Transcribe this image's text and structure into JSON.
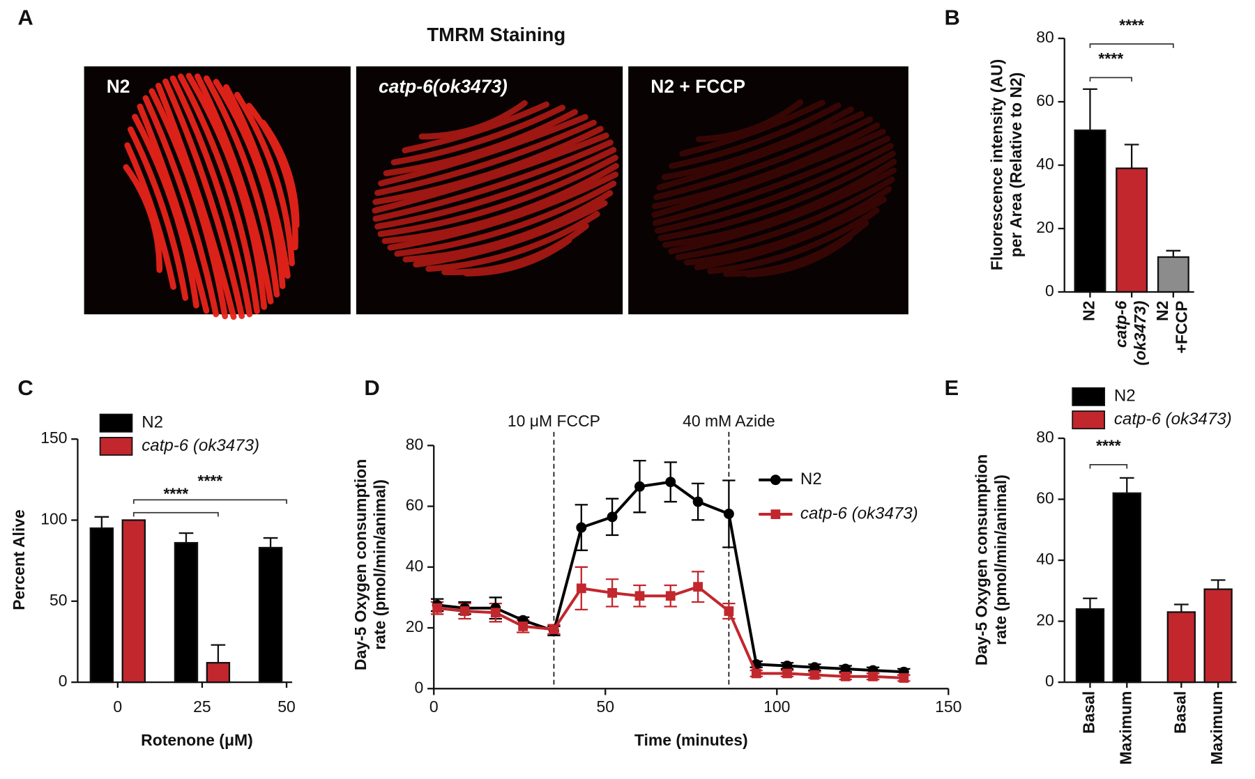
{
  "chart_data": [
    {
      "type": "image",
      "panel": "A",
      "title": "TMRM Staining",
      "images": [
        "N2",
        "catp-6(ok3473)",
        "N2 + FCCP"
      ]
    },
    {
      "type": "bar",
      "panel": "B",
      "ylabel": [
        "Fluorescence intensity (AU)",
        "per Area (Relative to N2)"
      ],
      "categories": [
        [
          "N2"
        ],
        [
          "catp-6",
          "(ok3473)"
        ],
        [
          "N2",
          "+FCCP"
        ]
      ],
      "values": [
        51,
        39,
        11
      ],
      "errors": [
        13,
        7.5,
        2
      ],
      "colors": [
        "#000000",
        "#c1272d",
        "#8c8c8c"
      ],
      "ylim": [
        0,
        80
      ],
      "yticks": [
        0,
        20,
        40,
        60,
        80
      ],
      "annotations": [
        {
          "label": "****",
          "between": [
            0,
            2
          ]
        },
        {
          "label": "****",
          "between": [
            0,
            1
          ]
        }
      ]
    },
    {
      "type": "grouped_bar",
      "panel": "C",
      "xlabel": "Rotenone (μM)",
      "ylabel": "Percent Alive",
      "categories": [
        "0",
        "25",
        "50"
      ],
      "series": [
        {
          "name": "N2",
          "color": "#000000",
          "values": [
            95,
            86,
            83
          ],
          "errors": [
            7,
            6,
            6
          ]
        },
        {
          "name": "catp-6 (ok3473)",
          "color": "#c1272d",
          "values": [
            100,
            12,
            null
          ],
          "errors": [
            null,
            11,
            null
          ]
        }
      ],
      "ylim": [
        0,
        150
      ],
      "yticks": [
        0,
        50,
        100,
        150
      ],
      "legend": "upper left",
      "annotations": [
        {
          "label": "****",
          "between": [
            0,
            1
          ]
        },
        {
          "label": "****",
          "between": [
            0,
            2
          ]
        }
      ]
    },
    {
      "type": "line",
      "panel": "D",
      "xlabel": "Time (minutes)",
      "ylabel": [
        "Day-5 Oxygen consumption",
        "rate (pmol/min/animal)"
      ],
      "x": [
        1,
        9,
        18,
        26,
        35,
        43,
        52,
        60,
        69,
        77,
        86,
        94,
        103,
        111,
        120,
        128,
        137
      ],
      "series": [
        {
          "name": "N2",
          "color": "#000000",
          "marker": "circle",
          "values": [
            27.5,
            26.5,
            26.5,
            22.5,
            19,
            53,
            56.5,
            66.5,
            68,
            61.5,
            57.5,
            8,
            7.5,
            7,
            6.5,
            6,
            5.5
          ],
          "errors": [
            2,
            2,
            3.5,
            1,
            1.5,
            7.5,
            6,
            8.5,
            6.5,
            6,
            11,
            1,
            1,
            1,
            1,
            1,
            1
          ]
        },
        {
          "name": "catp-6 (ok3473)",
          "color": "#c1272d",
          "marker": "square",
          "values": [
            26.5,
            25.5,
            25,
            20.5,
            19.5,
            33,
            31.5,
            30.5,
            30.5,
            33.5,
            25.5,
            5,
            5,
            4.5,
            4,
            4,
            3.5
          ],
          "errors": [
            2,
            2.5,
            3,
            2,
            1.5,
            7,
            4.5,
            3.5,
            3.5,
            5,
            2.5,
            1,
            1,
            1,
            1,
            1,
            1
          ]
        }
      ],
      "vlines": [
        {
          "x": 35,
          "label": "10 μM FCCP"
        },
        {
          "x": 86,
          "label": "40 mM Azide"
        }
      ],
      "xlim": [
        0,
        150
      ],
      "xticks": [
        0,
        50,
        100,
        150
      ],
      "ylim": [
        0,
        80
      ],
      "yticks": [
        0,
        20,
        40,
        60,
        80
      ],
      "legend": "center right"
    },
    {
      "type": "bar",
      "panel": "E",
      "ylabel": [
        "Day-5 Oxygen consumption",
        "rate (pmol/min/animal)"
      ],
      "categories": [
        [
          "Basal"
        ],
        [
          "Maximum"
        ],
        [
          "Basal"
        ],
        [
          "Maximum"
        ]
      ],
      "series": [
        {
          "name": "N2",
          "color": "#000000",
          "values": [
            24,
            62,
            null,
            null
          ],
          "errors": [
            3.5,
            5,
            null,
            null
          ]
        },
        {
          "name": "catp-6 (ok3473)",
          "color": "#c1272d",
          "values": [
            null,
            null,
            23,
            30.5
          ],
          "errors": [
            null,
            null,
            2.5,
            3
          ]
        }
      ],
      "ylim": [
        0,
        80
      ],
      "yticks": [
        0,
        20,
        40,
        60,
        80
      ],
      "legend": "top",
      "annotations": [
        {
          "label": "****",
          "between": [
            0,
            1
          ]
        }
      ]
    }
  ]
}
